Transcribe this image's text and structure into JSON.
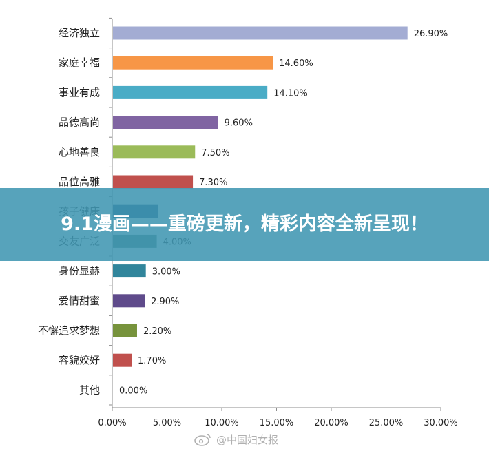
{
  "chart_data": {
    "type": "bar",
    "orientation": "horizontal",
    "categories": [
      "经济独立",
      "家庭幸福",
      "事业有成",
      "品德高尚",
      "心地善良",
      "品位高雅",
      "孩子健康",
      "交友广泛",
      "身份显赫",
      "爱情甜蜜",
      "不懈追求梦想",
      "容貌姣好",
      "其他"
    ],
    "values": [
      26.9,
      14.6,
      14.1,
      9.6,
      7.5,
      7.3,
      4.1,
      4.0,
      3.0,
      2.9,
      2.2,
      1.7,
      0.0
    ],
    "value_labels": [
      "26.90%",
      "14.60%",
      "14.10%",
      "9.60%",
      "7.50%",
      "7.30%",
      "",
      "4.00%",
      "3.00%",
      "2.90%",
      "2.20%",
      "1.70%",
      "0.00%"
    ],
    "colors": [
      "#a3acd3",
      "#f79646",
      "#4aacc6",
      "#8064a2",
      "#9bbb59",
      "#c0504d",
      "#1f497d",
      "#4a7f77",
      "#31859b",
      "#5f4b8b",
      "#77933c",
      "#c0504d",
      "#bbbbbb"
    ],
    "xlim": [
      0,
      30
    ],
    "x_ticks": [
      "0.00%",
      "5.00%",
      "10.00%",
      "15.00%",
      "20.00%",
      "25.00%",
      "30.00%"
    ],
    "x_tick_values": [
      0,
      5,
      10,
      15,
      20,
      25,
      30
    ],
    "grid": false
  },
  "banner": {
    "text": "9.1漫画——重磅更新，精彩内容全新呈现！"
  },
  "watermark": {
    "text": "@中国妇女报",
    "icon": "weibo-icon"
  }
}
